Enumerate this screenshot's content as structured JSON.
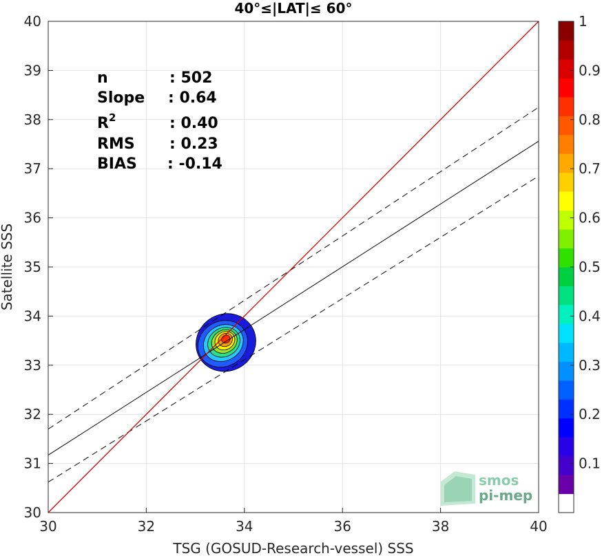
{
  "chart_data": {
    "type": "scatter",
    "title": "40°≤|LAT|≤ 60°",
    "xlabel": "TSG (GOSUD-Research-vessel) SSS",
    "ylabel": "Satellite SSS",
    "xlim": [
      30,
      40
    ],
    "ylim": [
      30,
      40
    ],
    "xticks": [
      "30",
      "32",
      "34",
      "36",
      "38",
      "40"
    ],
    "yticks": [
      "30",
      "31",
      "32",
      "33",
      "34",
      "35",
      "36",
      "37",
      "38",
      "39",
      "40"
    ],
    "grid": true,
    "stats": [
      {
        "label": "n",
        "value": ": 502"
      },
      {
        "label": "Slope",
        "value": ": 0.64"
      },
      {
        "label": "R",
        "sup": "2",
        "value": ": 0.40"
      },
      {
        "label": "RMS",
        "value": ": 0.23"
      },
      {
        "label": "BIAS",
        "value": ": -0.14"
      }
    ],
    "identity_line": {
      "x": [
        30,
        40
      ],
      "y": [
        30,
        40
      ],
      "color": "#cc0000"
    },
    "regression_line": {
      "x": [
        30,
        40
      ],
      "y": [
        31.17,
        37.56
      ],
      "color": "#000000"
    },
    "regression_bounds": [
      {
        "x": [
          30,
          40
        ],
        "y": [
          31.7,
          38.25
        ]
      },
      {
        "x": [
          30,
          40
        ],
        "y": [
          30.62,
          36.85
        ]
      }
    ],
    "density_contours": {
      "center": [
        33.55,
        33.42
      ],
      "levels": [
        {
          "level": 0.05,
          "color": "#1a1adb",
          "rx": 0.62,
          "ry": 0.58
        },
        {
          "level": 0.2,
          "color": "#1e5cff",
          "rx": 0.52,
          "ry": 0.46
        },
        {
          "level": 0.35,
          "color": "#27c8ff",
          "rx": 0.42,
          "ry": 0.36
        },
        {
          "level": 0.45,
          "color": "#2be08a",
          "rx": 0.34,
          "ry": 0.29
        },
        {
          "level": 0.55,
          "color": "#9be030",
          "rx": 0.27,
          "ry": 0.23
        },
        {
          "level": 0.65,
          "color": "#ffee00",
          "rx": 0.21,
          "ry": 0.18
        },
        {
          "level": 0.75,
          "color": "#ffa000",
          "rx": 0.15,
          "ry": 0.13
        },
        {
          "level": 0.85,
          "color": "#ff3300",
          "rx": 0.09,
          "ry": 0.08
        }
      ]
    },
    "colorbar": {
      "ticks": [
        "0.1",
        "0.2",
        "0.3",
        "0.4",
        "0.5",
        "0.6",
        "0.7",
        "0.8",
        "0.9",
        "1"
      ],
      "colors": [
        "#ffffff",
        "#6a00a8",
        "#4600cc",
        "#2a00e6",
        "#0000ff",
        "#0030ff",
        "#0060ff",
        "#0090ff",
        "#00b8ff",
        "#00e0ff",
        "#00f0c0",
        "#00e080",
        "#00d040",
        "#30e000",
        "#80f000",
        "#c0ff00",
        "#ffff00",
        "#ffd000",
        "#ffa800",
        "#ff8000",
        "#ff5800",
        "#ff3000",
        "#ff0000",
        "#d80000",
        "#b00000",
        "#880000"
      ]
    },
    "watermark": [
      "smos",
      "pi-mep"
    ]
  }
}
